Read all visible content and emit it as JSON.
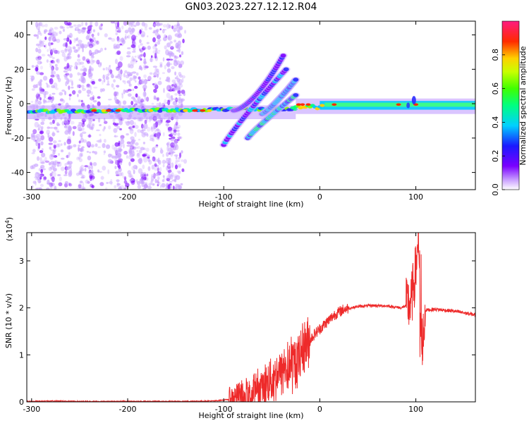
{
  "title": "GN03.2023.227.12.12.R04",
  "chart_data": [
    {
      "type": "heatmap",
      "xlabel": "Height of straight line (km)",
      "ylabel": "Frequency (Hz)",
      "xlim": [
        -305,
        162
      ],
      "ylim": [
        -50,
        48
      ],
      "xticks": [
        -300,
        -200,
        -100,
        0,
        100
      ],
      "yticks": [
        -40,
        -20,
        0,
        20,
        40
      ],
      "grid": false,
      "colorbar": {
        "label": "Normalized spectral amplitude",
        "range": [
          0,
          1
        ],
        "ticks": [
          0.0,
          0.2,
          0.4,
          0.6,
          0.8
        ],
        "colormap": [
          "#7a00ff",
          "#1a1aff",
          "#00d0ff",
          "#00ff40",
          "#c8ff00",
          "#ffd000",
          "#ff2a00",
          "#ff1a80"
        ]
      },
      "features": [
        {
          "name": "main-band",
          "x_range": [
            -305,
            -25
          ],
          "frequency": [
            -6,
            -3
          ],
          "amplitude": 0.6
        },
        {
          "name": "post-band",
          "x_range": [
            -25,
            162
          ],
          "frequency": [
            -2,
            0
          ],
          "amplitude": 0.55
        },
        {
          "name": "arc-upper",
          "x_range": [
            -90,
            -38
          ],
          "frequency": [
            -10,
            28
          ]
        },
        {
          "name": "arc-middle",
          "x_range": [
            -100,
            -35
          ],
          "frequency": [
            -24,
            20
          ]
        },
        {
          "name": "arc-lower",
          "x_range": [
            -75,
            -25
          ],
          "frequency": [
            -20,
            5
          ]
        }
      ]
    },
    {
      "type": "line",
      "xlabel": "Height of straight line (km)",
      "ylabel": "SNR (10 * v/v)",
      "yscale_label": "(x10",
      "yscale_exp": "4",
      "yscale_close": ")",
      "xlim": [
        -305,
        162
      ],
      "ylim": [
        0,
        3.6
      ],
      "xticks": [
        -300,
        -200,
        -100,
        0,
        100
      ],
      "yticks": [
        0,
        1,
        2,
        3
      ],
      "grid": false,
      "color": "#ee2a2a",
      "series": [
        {
          "x": [
            -305,
            -280,
            -250,
            -200,
            -150,
            -110,
            -95,
            -85,
            -75,
            -65,
            -55,
            -45,
            -35,
            -25,
            -15,
            -5,
            5,
            15,
            25,
            40,
            55,
            70,
            85,
            95,
            100,
            103,
            106,
            110,
            120,
            140,
            162
          ],
          "y": [
            0.01,
            0.02,
            0.01,
            0.01,
            0.01,
            0.02,
            0.05,
            0.12,
            0.25,
            0.4,
            0.55,
            0.7,
            0.85,
            0.98,
            1.2,
            1.45,
            1.65,
            1.85,
            1.97,
            2.03,
            2.05,
            2.04,
            2.0,
            2.1,
            2.8,
            3.55,
            1.0,
            1.95,
            1.97,
            1.93,
            1.85
          ]
        }
      ]
    }
  ]
}
